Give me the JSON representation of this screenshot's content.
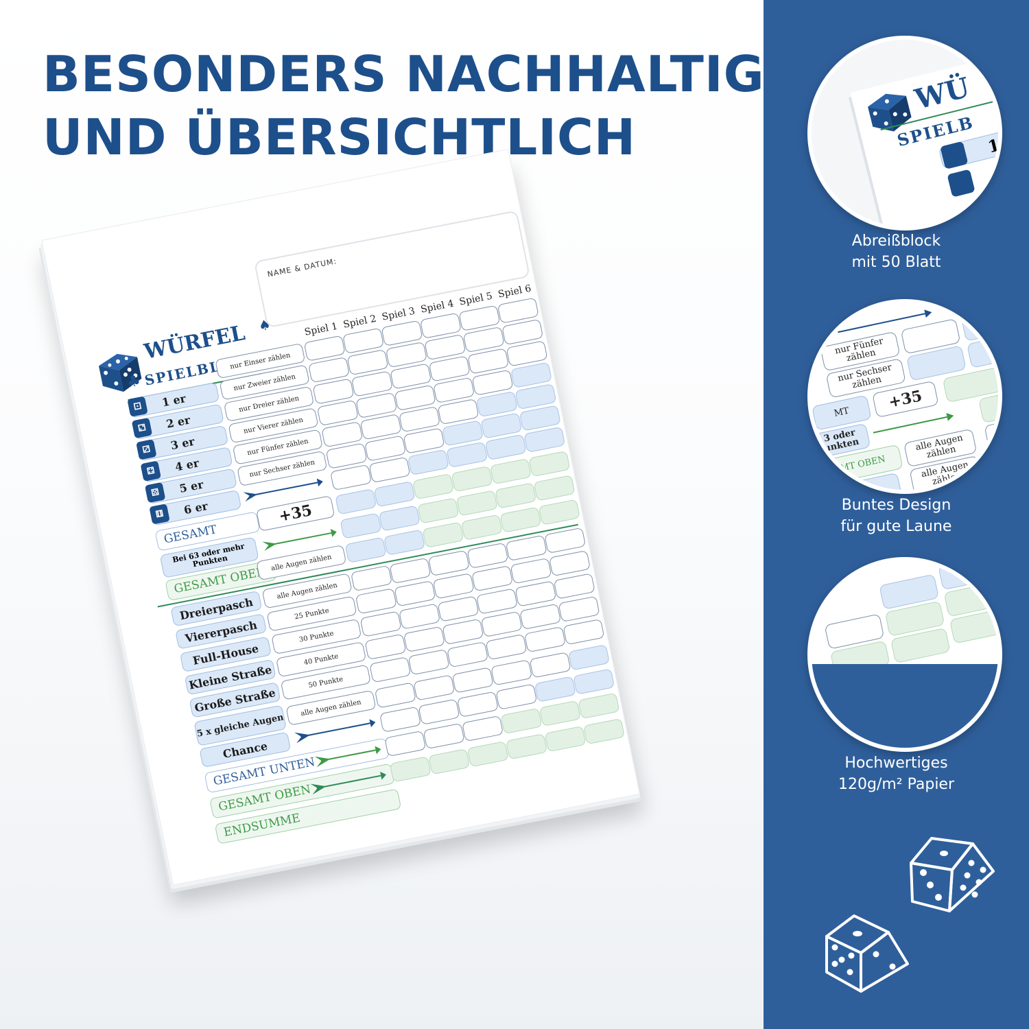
{
  "headline": {
    "line1": "BESONDERS NACHHALTIG",
    "line2": "UND ÜBERSICHTLICH"
  },
  "colors": {
    "brand_blue": "#1d4f8b",
    "panel_blue": "#2f5f9b",
    "accent_green": "#2e8b57",
    "cell_blue": "#dbe8f8",
    "cell_green": "#e3f1e4"
  },
  "scoresheet": {
    "logo_title": "WÜRFEL",
    "logo_subtitle": "SPIELBLOCK",
    "name_label": "NAME & DATUM:",
    "columns": [
      "Spiel 1",
      "Spiel 2",
      "Spiel 3",
      "Spiel 4",
      "Spiel 5",
      "Spiel 6"
    ],
    "upper_rows": [
      {
        "label": "1 er",
        "desc": "nur Einser zählen",
        "pips": "⚀"
      },
      {
        "label": "2 er",
        "desc": "nur Zweier zählen",
        "pips": "⚁"
      },
      {
        "label": "3 er",
        "desc": "nur Dreier zählen",
        "pips": "⚂"
      },
      {
        "label": "4 er",
        "desc": "nur Vierer zählen",
        "pips": "⚃"
      },
      {
        "label": "5 er",
        "desc": "nur Fünfer zählen",
        "pips": "⚄"
      },
      {
        "label": "6 er",
        "desc": "nur Sechser zählen",
        "pips": "⚅"
      }
    ],
    "gesamt": "GESAMT",
    "bonus_condition": "Bei 63 oder mehr Punkten",
    "bonus_value": "+35",
    "gesamt_oben": "GESAMT OBEN",
    "lower_rows": [
      {
        "label": "Dreierpasch",
        "desc": "alle Augen zählen"
      },
      {
        "label": "Viererpasch",
        "desc": "alle Augen zählen"
      },
      {
        "label": "Full-House",
        "desc": "25 Punkte"
      },
      {
        "label": "Kleine Straße",
        "desc": "30 Punkte"
      },
      {
        "label": "Große Straße",
        "desc": "40 Punkte"
      },
      {
        "label": "5 x gleiche Augen",
        "desc": "50 Punkte"
      },
      {
        "label": "Chance",
        "desc": "alle Augen zählen"
      }
    ],
    "gesamt_unten": "GESAMT UNTEN",
    "gesamt_oben_2": "GESAMT OBEN",
    "endsumme": "ENDSUMME"
  },
  "features": [
    {
      "icon": "notepad-zoom-icon",
      "line1": "Abreißblock",
      "line2": "mit 50 Blatt"
    },
    {
      "icon": "colorful-design-zoom-icon",
      "line1": "Buntes Design",
      "line2": "für gute Laune"
    },
    {
      "icon": "paper-quality-zoom-icon",
      "line1": "Hochwertiges",
      "line2": "120g/m² Papier"
    }
  ],
  "zoom_texts": {
    "z1_title": "WÜ",
    "z1_sub": "SPIELB",
    "z1_row": "1 er",
    "z2_desc1": "nur Fünfer zählen",
    "z2_desc2": "nur Sechser zählen",
    "z2_bonus": "+35",
    "z2_cond": "3 oder unkten",
    "z2_gesamt_oben": "AMT OBEN",
    "z2_row1": "rpasch",
    "z2_row2": "asch",
    "z2_alle": "alle Augen zählen",
    "z2_25": "25 Punkte",
    "z2_mt": "MT"
  },
  "decor_icons": [
    "dice-icon",
    "dice-icon"
  ]
}
